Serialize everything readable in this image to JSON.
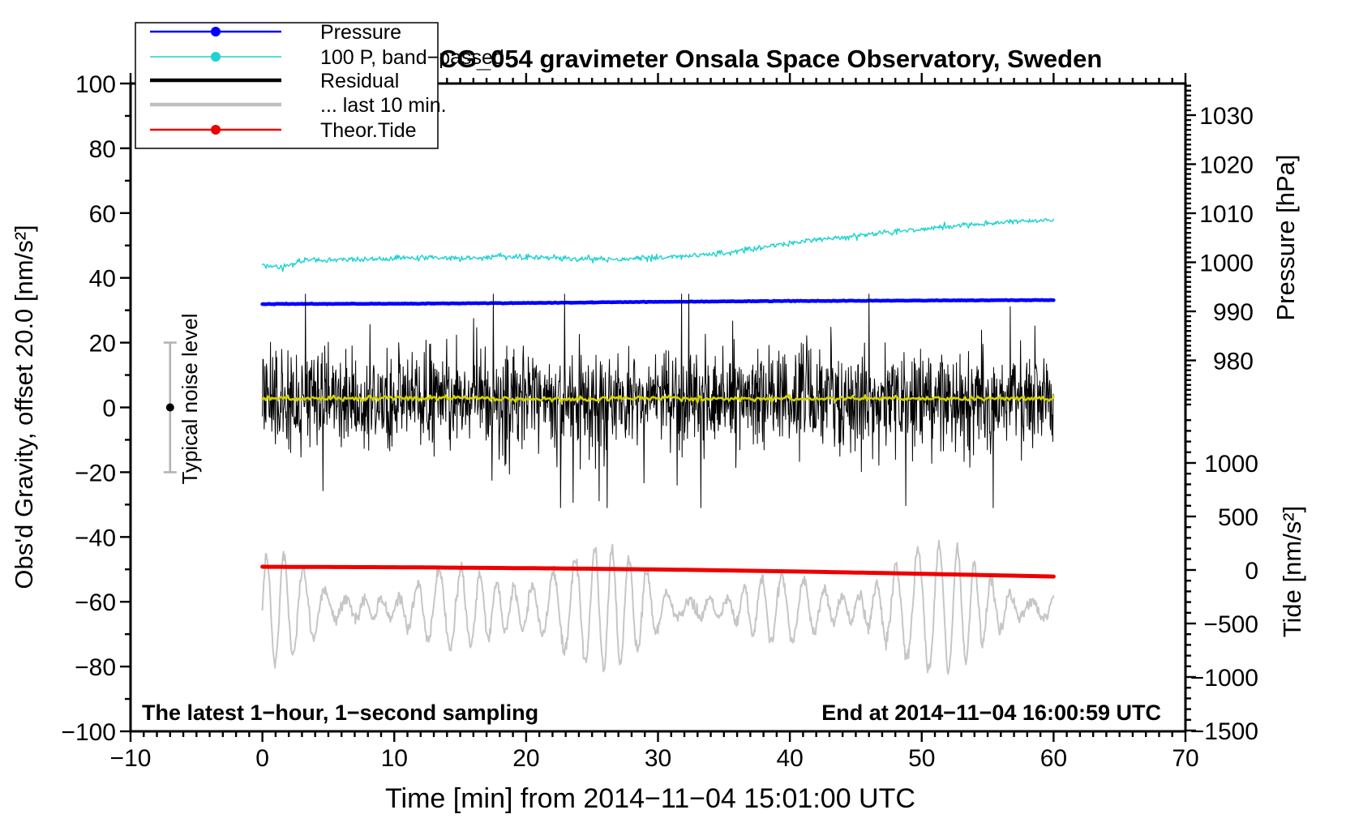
{
  "title": "SCG_054 gravimeter Onsala Space Observatory, Sweden",
  "annotations": {
    "sampling_note": "The latest 1−hour, 1−second sampling",
    "end_time_note": "End at 2014−11−04 16:00:59 UTC"
  },
  "noise_marker": {
    "label": "Typical noise level",
    "x_min": -7,
    "center_value": 0,
    "half_range": 20,
    "bar_color": "#b4b4b4",
    "dot_color": "#000000"
  },
  "legend": {
    "position": "top-left",
    "items": [
      {
        "label": "Pressure",
        "color": "#0000ff",
        "marker": "dot"
      },
      {
        "label": "100 P, band−passed",
        "color": "#1ed2d2",
        "marker": "dot"
      },
      {
        "label": "Residual",
        "color": "#000000",
        "marker": "line"
      },
      {
        "label": "... last 10 min.",
        "color": "#c0c0c0",
        "marker": "line"
      },
      {
        "label": "Theor.Tide",
        "color": "#ee0000",
        "marker": "dot"
      }
    ]
  },
  "chart_data": {
    "type": "line",
    "title": "SCG_054 gravimeter Onsala Space Observatory, Sweden",
    "grid": false,
    "axes": {
      "x": {
        "label": "Time [min] from 2014−11−04 15:01:00 UTC",
        "min": -10,
        "max": 70,
        "major_step": 10,
        "minor_step": 1,
        "major_values": [
          -10,
          0,
          10,
          20,
          30,
          40,
          50,
          60,
          70
        ],
        "major_labels": [
          "−10",
          "0",
          "10",
          "20",
          "30",
          "40",
          "50",
          "60",
          "70"
        ]
      },
      "gravity": {
        "label": "Obs'd Gravity, offset 20.0 [nm/s²]",
        "min": -100,
        "max": 100,
        "major_step": 20,
        "minor_step": 10,
        "major_values": [
          100,
          80,
          60,
          40,
          20,
          0,
          -20,
          -40,
          -60,
          -80,
          -100
        ],
        "major_labels": [
          "100",
          "80",
          "60",
          "40",
          "20",
          "0",
          "−20",
          "−40",
          "−60",
          "−80",
          "−100"
        ]
      },
      "pressure": {
        "label": "Pressure [hPa]",
        "major_values": [
          1030,
          1020,
          1010,
          1000,
          990,
          980
        ],
        "major_labels": [
          "1030",
          "1020",
          "1010",
          "1000",
          "990",
          "980"
        ],
        "minor_step": 1,
        "minor_range": [
          971,
          1036
        ]
      },
      "tide": {
        "label": "Tide [nm/s²]",
        "major_values": [
          1000,
          500,
          0,
          -500,
          -1000,
          -1500
        ],
        "major_labels": [
          "1000",
          "500",
          "0",
          "−500",
          "−1000",
          "−1500"
        ],
        "minor_step": 100,
        "minor_range": [
          -1500,
          1400
        ]
      }
    },
    "x_data_range_min": [
      0,
      60
    ],
    "series": [
      {
        "name": "Pressure",
        "axis": "pressure",
        "unit": "hPa",
        "color": "#0000ff",
        "width": 4.5,
        "gen": "smooth",
        "step": 0.1,
        "noise_sd": 0.03,
        "keypoints": [
          [
            0,
            991.5
          ],
          [
            10,
            991.55
          ],
          [
            20,
            991.7
          ],
          [
            30,
            991.95
          ],
          [
            40,
            992.1
          ],
          [
            50,
            992.2
          ],
          [
            60,
            992.3
          ]
        ]
      },
      {
        "name": "100 P, band−passed",
        "axis": "gravity",
        "unit": "nm/s²",
        "color": "#1ed2d2",
        "width": 1.4,
        "gen": "smooth",
        "step": 0.07,
        "noise_sd": 0.45,
        "keypoints": [
          [
            0,
            44.0
          ],
          [
            1.5,
            43.2
          ],
          [
            3,
            45.2
          ],
          [
            6,
            45.6
          ],
          [
            9,
            45.7
          ],
          [
            12,
            46.2
          ],
          [
            15,
            46.0
          ],
          [
            18,
            46.6
          ],
          [
            21,
            46.3
          ],
          [
            24,
            45.9
          ],
          [
            27,
            45.6
          ],
          [
            30,
            46.3
          ],
          [
            33,
            47.0
          ],
          [
            35,
            47.6
          ],
          [
            37,
            48.8
          ],
          [
            39,
            50.2
          ],
          [
            41,
            51.3
          ],
          [
            44,
            52.5
          ],
          [
            47,
            53.8
          ],
          [
            50,
            55.0
          ],
          [
            53,
            56.2
          ],
          [
            56,
            57.2
          ],
          [
            58,
            57.6
          ],
          [
            60,
            58.0
          ]
        ]
      },
      {
        "name": "Residual",
        "axis": "gravity",
        "unit": "nm/s²",
        "color": "#000000",
        "width": 1,
        "gen": "noise",
        "step": 0.034,
        "mean": 2.5,
        "sd": 7.5,
        "spike_prob": 0.012,
        "spike_scale": 2.6,
        "clip": [
          -31,
          35
        ]
      },
      {
        "name": "Residual running mean",
        "axis": "gravity",
        "unit": "nm/s²",
        "color": "#d2d200",
        "width": 2.6,
        "gen": "smooth",
        "step": 0.12,
        "noise_sd": 0.35,
        "keypoints": [
          [
            0,
            2.8
          ],
          [
            10,
            2.9
          ],
          [
            20,
            2.7
          ],
          [
            30,
            2.8
          ],
          [
            40,
            2.6
          ],
          [
            50,
            2.8
          ],
          [
            60,
            2.7
          ]
        ]
      },
      {
        "name": "... last 10 min.",
        "axis": "gravity",
        "unit": "nm/s²",
        "color": "#c6c6c6",
        "width": 2,
        "gen": "oscillation",
        "step": 0.05,
        "center": -62,
        "period": 1.45,
        "amp_base": 9,
        "amp_mod1": [
          6,
          0.5,
          1.0
        ],
        "amp_mod2": [
          5,
          0.23,
          2.5
        ],
        "noise_sd": 1.0
      },
      {
        "name": "Theor.Tide",
        "axis": "tide",
        "unit": "nm/s²",
        "color": "#ee0000",
        "width": 5,
        "gen": "smooth",
        "step": 0.5,
        "noise_sd": 0,
        "keypoints": [
          [
            0,
            30
          ],
          [
            11,
            25
          ],
          [
            22,
            15
          ],
          [
            32,
            2
          ],
          [
            42,
            -17
          ],
          [
            51,
            -38
          ],
          [
            60,
            -61
          ]
        ]
      }
    ]
  }
}
